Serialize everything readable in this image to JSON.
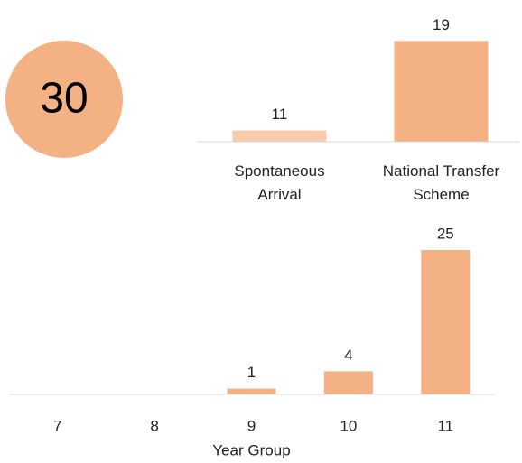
{
  "chart_data": [
    {
      "type": "kpi",
      "value": 30,
      "color": "#f4b183"
    },
    {
      "type": "bar",
      "categories": [
        "Spontaneous Arrival",
        "National Transfer Scheme"
      ],
      "values": [
        11,
        19
      ],
      "colors": [
        "#f8cbad",
        "#f4b183"
      ],
      "ylim": [
        10,
        20
      ]
    },
    {
      "type": "bar",
      "categories": [
        "7",
        "8",
        "9",
        "10",
        "11"
      ],
      "values": [
        0,
        0,
        1,
        4,
        25
      ],
      "value_labels": [
        null,
        null,
        "1",
        "4",
        "25"
      ],
      "colors": [
        "#f4b183",
        "#f4b183",
        "#f4b183",
        "#f4b183",
        "#f4b183"
      ],
      "ylim": [
        0,
        30
      ],
      "x_label": "Year Group"
    }
  ]
}
